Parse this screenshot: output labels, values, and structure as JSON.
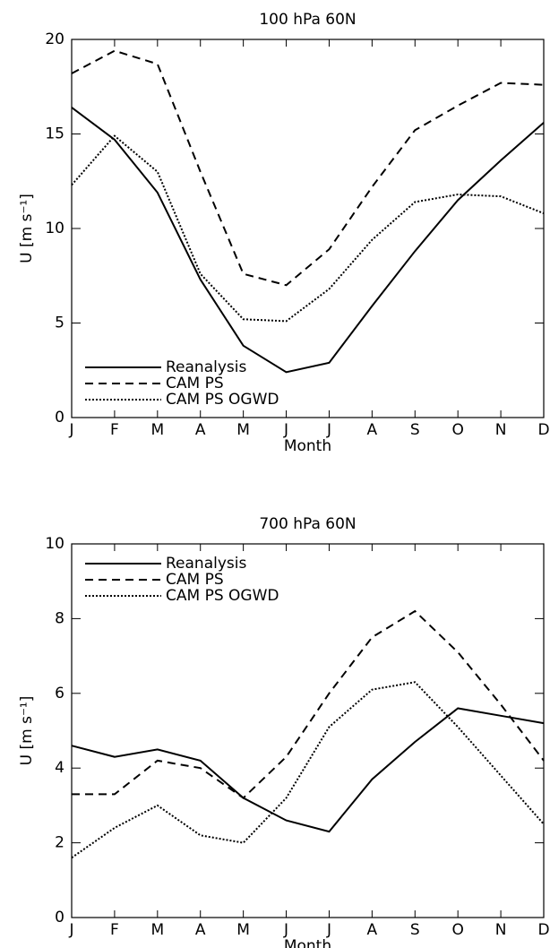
{
  "chart_data": [
    {
      "type": "line",
      "title": "100 hPa 60N",
      "xlabel": "Month",
      "ylabel": "U [m s⁻¹]",
      "categories": [
        "J",
        "F",
        "M",
        "A",
        "M",
        "J",
        "J",
        "A",
        "S",
        "O",
        "N",
        "D"
      ],
      "ylim": [
        0,
        20
      ],
      "yticks": [
        0,
        5,
        10,
        15,
        20
      ],
      "legend": "lower left",
      "series": [
        {
          "name": "Reanalysis",
          "color": "#000000",
          "style": "solid",
          "values": [
            16.4,
            14.7,
            11.9,
            7.3,
            3.8,
            2.4,
            2.9,
            5.9,
            8.8,
            11.5,
            13.6,
            15.6
          ]
        },
        {
          "name": "CAM PS",
          "color": "#000000",
          "style": "dashed",
          "values": [
            18.2,
            19.4,
            18.7,
            13.0,
            7.6,
            7.0,
            8.9,
            12.2,
            15.2,
            16.5,
            17.7,
            17.6
          ]
        },
        {
          "name": "CAM PS OGWD",
          "color": "#000000",
          "style": "dotted",
          "values": [
            12.3,
            14.9,
            13.0,
            7.6,
            5.2,
            5.1,
            6.8,
            9.4,
            11.4,
            11.8,
            11.7,
            10.8
          ]
        }
      ]
    },
    {
      "type": "line",
      "title": "700 hPa 60N",
      "xlabel": "Month",
      "ylabel": "U [m s⁻¹]",
      "categories": [
        "J",
        "F",
        "M",
        "A",
        "M",
        "J",
        "J",
        "A",
        "S",
        "O",
        "N",
        "D"
      ],
      "ylim": [
        0,
        10
      ],
      "yticks": [
        0,
        2,
        4,
        6,
        8,
        10
      ],
      "legend": "upper left",
      "series": [
        {
          "name": "Reanalysis",
          "color": "#000000",
          "style": "solid",
          "values": [
            4.6,
            4.3,
            4.5,
            4.2,
            3.2,
            2.6,
            2.3,
            3.7,
            4.7,
            5.6,
            5.4,
            5.2
          ]
        },
        {
          "name": "CAM PS",
          "color": "#000000",
          "style": "dashed",
          "values": [
            3.3,
            3.3,
            4.2,
            4.0,
            3.2,
            4.3,
            6.0,
            7.5,
            8.2,
            7.1,
            5.7,
            4.2
          ]
        },
        {
          "name": "CAM PS OGWD",
          "color": "#000000",
          "style": "dotted",
          "values": [
            1.6,
            2.4,
            3.0,
            2.2,
            2.0,
            3.2,
            5.1,
            6.1,
            6.3,
            5.1,
            3.8,
            2.5
          ]
        }
      ]
    }
  ]
}
